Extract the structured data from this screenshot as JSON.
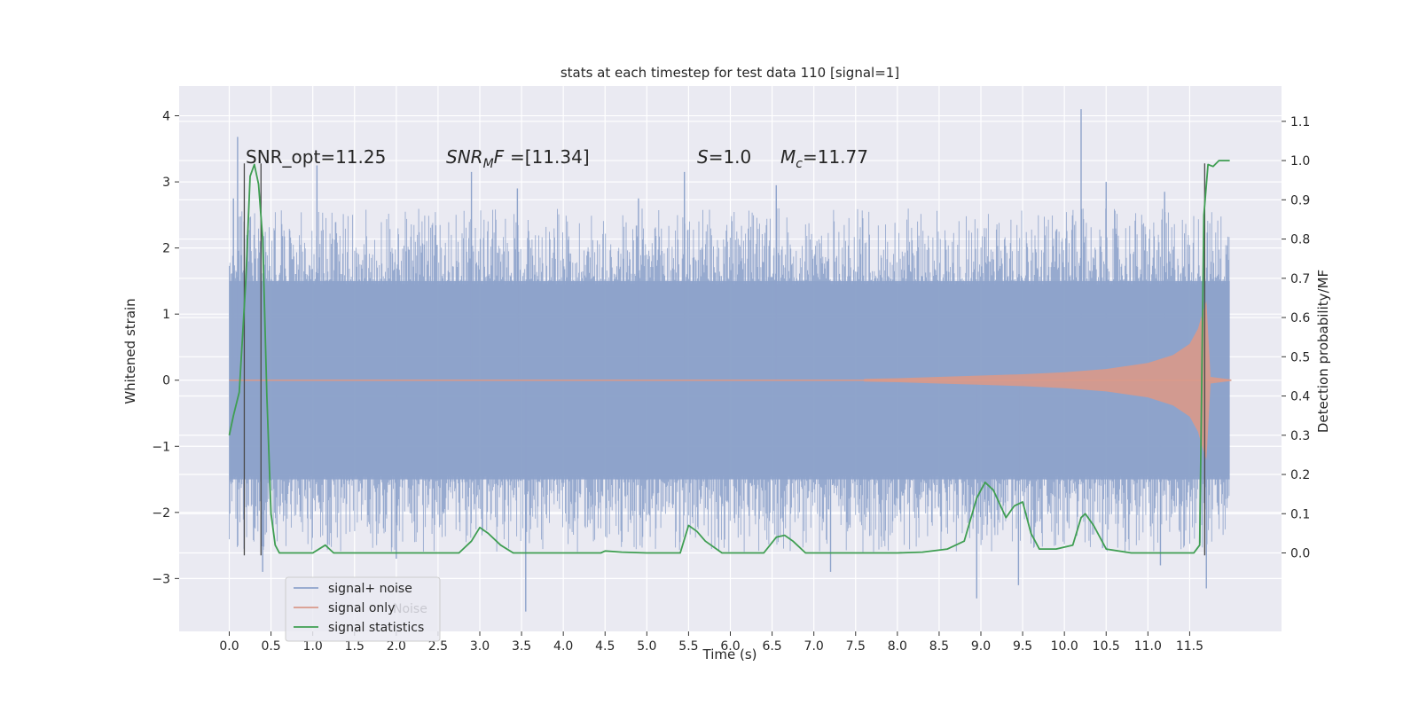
{
  "chart_data": {
    "type": "line",
    "title": "stats at each timestep for test data 110 [signal=1]",
    "xlabel": "Time (s)",
    "ylabel_left": "Whitened strain",
    "ylabel_right": "Detection probability/MF",
    "xlim": [
      -0.6,
      12.6
    ],
    "ylim_left": [
      -3.8,
      4.45
    ],
    "ylim_right": [
      -0.2,
      1.19
    ],
    "x_ticks": [
      0.0,
      0.5,
      1.0,
      1.5,
      2.0,
      2.5,
      3.0,
      3.5,
      4.0,
      4.5,
      5.0,
      5.5,
      6.0,
      6.5,
      7.0,
      7.5,
      8.0,
      8.5,
      9.0,
      9.5,
      10.0,
      10.5,
      11.0,
      11.5
    ],
    "x_tick_labels": [
      "0.0",
      "0.5",
      "1.0",
      "1.5",
      "2.0",
      "2.5",
      "3.0",
      "3.5",
      "4.0",
      "4.5",
      "5.0",
      "5.5",
      "6.0",
      "6.5",
      "7.0",
      "7.5",
      "8.0",
      "8.5",
      "9.0",
      "9.5",
      "10.0",
      "10.5",
      "11.0",
      "11.5"
    ],
    "y_left_ticks": [
      -3,
      -2,
      -1,
      0,
      1,
      2,
      3,
      4
    ],
    "y_left_tick_labels": [
      "−3",
      "−2",
      "−1",
      "0",
      "1",
      "2",
      "3",
      "4"
    ],
    "y_right_ticks": [
      0.0,
      0.1,
      0.2,
      0.3,
      0.4,
      0.5,
      0.6,
      0.7,
      0.8,
      0.9,
      1.0,
      1.1
    ],
    "y_right_tick_labels": [
      "0.0",
      "0.1",
      "0.2",
      "0.3",
      "0.4",
      "0.5",
      "0.6",
      "0.7",
      "0.8",
      "0.9",
      "1.0",
      "1.1"
    ],
    "grid": true,
    "legend_position": "lower-left",
    "legend": [
      "signal+ noise",
      "signal only",
      "signal statistics"
    ],
    "legend_ghost_text": "Noise",
    "annotations": {
      "snr_opt": "SNR_opt=11.25",
      "snr_mf_prefix": "SNR",
      "snr_mf_sub": "M",
      "snr_mf_suffix": "F=[11.34]",
      "s_italic": "S",
      "s_value": "=1.0",
      "mc_italic": "M",
      "mc_sub": "c",
      "mc_value": "=11.77"
    },
    "noise": {
      "x_range": [
        0.0,
        11.98
      ],
      "core_band": [
        -1.5,
        1.5
      ],
      "typical_peaks_upper": [
        2.0,
        2.5
      ],
      "typical_peaks_lower": [
        -2.0,
        -2.5
      ],
      "notable_peaks": [
        {
          "x": 0.05,
          "y": 2.75
        },
        {
          "x": 0.1,
          "y": 3.68
        },
        {
          "x": 1.05,
          "y": 3.25
        },
        {
          "x": 2.9,
          "y": 3.15
        },
        {
          "x": 3.45,
          "y": 2.9
        },
        {
          "x": 4.9,
          "y": 2.75
        },
        {
          "x": 5.45,
          "y": 3.15
        },
        {
          "x": 6.55,
          "y": 2.95
        },
        {
          "x": 10.2,
          "y": 4.1
        },
        {
          "x": 10.5,
          "y": 3.0
        },
        {
          "x": 11.2,
          "y": 2.85
        },
        {
          "x": 0.4,
          "y": -2.9
        },
        {
          "x": 2.0,
          "y": -2.7
        },
        {
          "x": 3.55,
          "y": -3.5
        },
        {
          "x": 7.2,
          "y": -2.9
        },
        {
          "x": 8.95,
          "y": -3.3
        },
        {
          "x": 9.45,
          "y": -3.1
        },
        {
          "x": 11.15,
          "y": -2.8
        },
        {
          "x": 11.7,
          "y": -3.15
        }
      ]
    },
    "signal_envelope": [
      {
        "x": 7.6,
        "amp": 0.02
      },
      {
        "x": 8.0,
        "amp": 0.03
      },
      {
        "x": 8.5,
        "amp": 0.05
      },
      {
        "x": 9.0,
        "amp": 0.07
      },
      {
        "x": 9.5,
        "amp": 0.09
      },
      {
        "x": 10.0,
        "amp": 0.12
      },
      {
        "x": 10.5,
        "amp": 0.17
      },
      {
        "x": 11.0,
        "amp": 0.26
      },
      {
        "x": 11.3,
        "amp": 0.38
      },
      {
        "x": 11.5,
        "amp": 0.55
      },
      {
        "x": 11.6,
        "amp": 0.78
      },
      {
        "x": 11.65,
        "amp": 1.0
      },
      {
        "x": 11.7,
        "amp": 1.2
      },
      {
        "x": 11.75,
        "amp": 0.05
      },
      {
        "x": 12.0,
        "amp": 0.01
      }
    ],
    "statistics": {
      "x": [
        0.0,
        0.05,
        0.12,
        0.2,
        0.25,
        0.3,
        0.35,
        0.4,
        0.45,
        0.5,
        0.55,
        0.6,
        0.8,
        1.0,
        1.15,
        1.2,
        1.25,
        1.5,
        2.0,
        2.5,
        2.75,
        2.9,
        3.0,
        3.1,
        3.25,
        3.4,
        3.6,
        4.0,
        4.45,
        4.5,
        4.7,
        5.0,
        5.4,
        5.5,
        5.6,
        5.7,
        5.9,
        6.1,
        6.4,
        6.55,
        6.65,
        6.75,
        6.9,
        7.2,
        7.5,
        8.0,
        8.3,
        8.6,
        8.8,
        8.95,
        9.05,
        9.15,
        9.3,
        9.4,
        9.5,
        9.6,
        9.7,
        9.9,
        10.1,
        10.2,
        10.25,
        10.35,
        10.5,
        10.8,
        11.2,
        11.55,
        11.62,
        11.67,
        11.72,
        11.78,
        11.85,
        11.98
      ],
      "y": [
        0.3,
        0.35,
        0.41,
        0.7,
        0.96,
        0.99,
        0.94,
        0.8,
        0.4,
        0.1,
        0.02,
        0.0,
        0.0,
        0.0,
        0.02,
        0.01,
        0.0,
        0.0,
        0.0,
        0.0,
        0.0,
        0.03,
        0.065,
        0.05,
        0.02,
        0.0,
        0.0,
        0.0,
        0.0,
        0.005,
        0.002,
        0.0,
        0.0,
        0.07,
        0.055,
        0.03,
        0.0,
        0.0,
        0.0,
        0.04,
        0.045,
        0.03,
        0.0,
        0.0,
        0.0,
        0.0,
        0.002,
        0.01,
        0.03,
        0.14,
        0.18,
        0.16,
        0.09,
        0.12,
        0.13,
        0.05,
        0.01,
        0.01,
        0.02,
        0.09,
        0.1,
        0.07,
        0.01,
        0.0,
        0.0,
        0.0,
        0.02,
        0.86,
        0.99,
        0.985,
        1.0,
        1.0
      ]
    },
    "vlines": [
      {
        "x": 0.18,
        "y": [
          -2.65,
          3.28
        ]
      },
      {
        "x": 0.38,
        "y": [
          -2.65,
          3.28
        ]
      },
      {
        "x": 11.68,
        "y": [
          -2.65,
          3.28
        ]
      }
    ],
    "colors": {
      "background": "#eaeaf2",
      "grid": "#ffffff",
      "noise": "#8ea3cb",
      "signal": "#d9998a",
      "statistics": "#3f9e52",
      "vline": "#4a4a4a",
      "text": "#262626"
    }
  }
}
